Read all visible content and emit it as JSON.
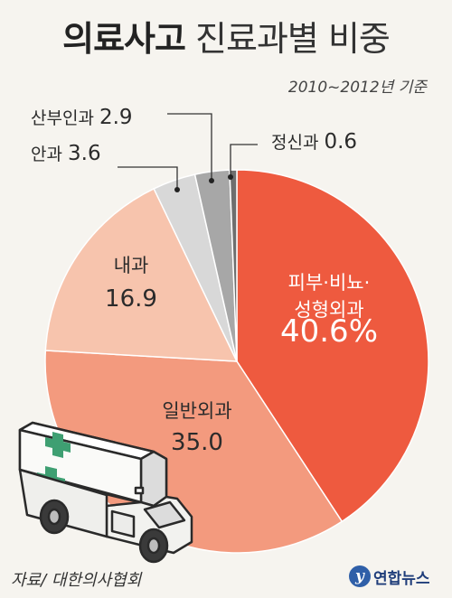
{
  "header": {
    "title_bold": "의료사고",
    "title_rest": "진료과별 비중",
    "period": "2010~2012년 기준"
  },
  "chart_data": {
    "type": "pie",
    "title": "의료사고 진료과별 비중",
    "subtitle": "2010~2012년 기준",
    "unit": "%",
    "slices": [
      {
        "label": "피부·비뇨·성형외과",
        "label_lines": [
          "피부·비뇨·",
          "성형외과"
        ],
        "value": 40.6,
        "value_text": "40.6%",
        "color": "#ee5a3f"
      },
      {
        "label": "일반외과",
        "label_lines": [
          "일반외과"
        ],
        "value": 35.0,
        "value_text": "35.0",
        "color": "#f39a7e"
      },
      {
        "label": "내과",
        "label_lines": [
          "내과"
        ],
        "value": 16.9,
        "value_text": "16.9",
        "color": "#f7c4ad"
      },
      {
        "label": "안과",
        "label_lines": [
          "안과"
        ],
        "value": 3.6,
        "value_text": "3.6",
        "color": "#d8d8d8"
      },
      {
        "label": "산부인과",
        "label_lines": [
          "산부인과"
        ],
        "value": 2.9,
        "value_text": "2.9",
        "color": "#a7a7a7"
      },
      {
        "label": "정신과",
        "label_lines": [
          "정신과"
        ],
        "value": 0.6,
        "value_text": "0.6",
        "color": "#6e6e6e"
      }
    ]
  },
  "footer": {
    "source": "자료/ 대한의사협회",
    "brand": "연합뉴스",
    "brand_icon": "yonhap-logo-icon"
  }
}
